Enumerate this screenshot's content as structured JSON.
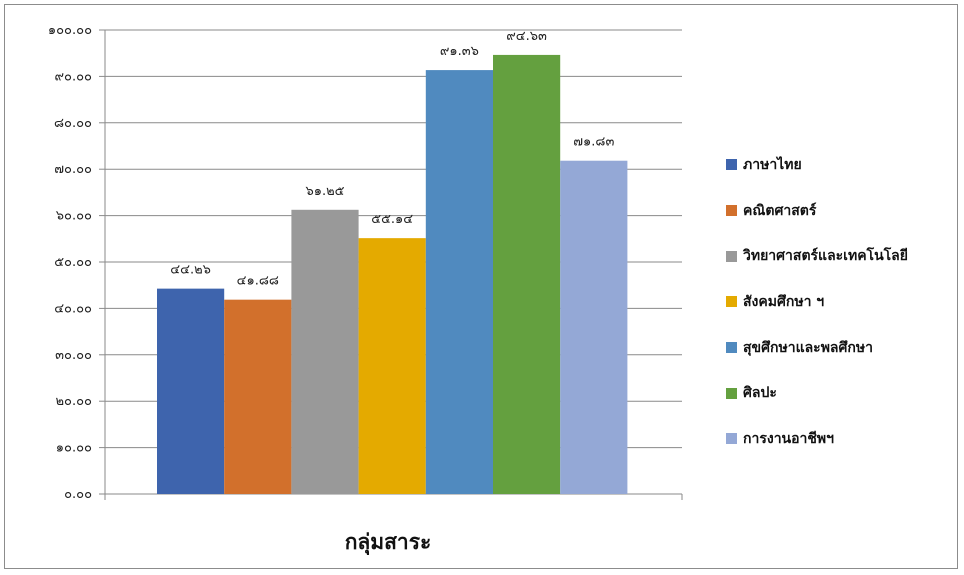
{
  "chart_data": {
    "type": "bar",
    "categories": [
      "กลุ่มสาระ"
    ],
    "xlabel": "กลุ่มสาระ",
    "ylabel": "",
    "ylim": [
      0,
      100
    ],
    "grid": true,
    "legend_position": "right",
    "yticks": [
      "๐.๐๐",
      "๑๐.๐๐",
      "๒๐.๐๐",
      "๓๐.๐๐",
      "๔๐.๐๐",
      "๕๐.๐๐",
      "๖๐.๐๐",
      "๗๐.๐๐",
      "๘๐.๐๐",
      "๙๐.๐๐",
      "๑๐๐.๐๐"
    ],
    "series": [
      {
        "name": "ภาษาไทย",
        "values": [
          44.26
        ],
        "label": "๔๔.๒๖",
        "color": "#3e64ad"
      },
      {
        "name": "คณิตศาสตร์",
        "values": [
          41.88
        ],
        "label": "๔๑.๘๘",
        "color": "#d2702c"
      },
      {
        "name": "วิทยาศาสตร์และเทคโนโลยี",
        "values": [
          61.25
        ],
        "label": "๖๑.๒๕",
        "color": "#999999"
      },
      {
        "name": "สังคมศึกษา ฯ",
        "values": [
          55.14
        ],
        "label": "๕๕.๑๔",
        "color": "#e4aa00"
      },
      {
        "name": "สุขศึกษาและพลศึกษา",
        "values": [
          91.36
        ],
        "label": "๙๑.๓๖",
        "color": "#508abf"
      },
      {
        "name": "ศิลปะ",
        "values": [
          94.63
        ],
        "label": "๙๔.๖๓",
        "color": "#64a03f"
      },
      {
        "name": "การงานอาชีพฯ",
        "values": [
          71.83
        ],
        "label": "๗๑.๘๓",
        "color": "#94a8d6"
      }
    ]
  }
}
